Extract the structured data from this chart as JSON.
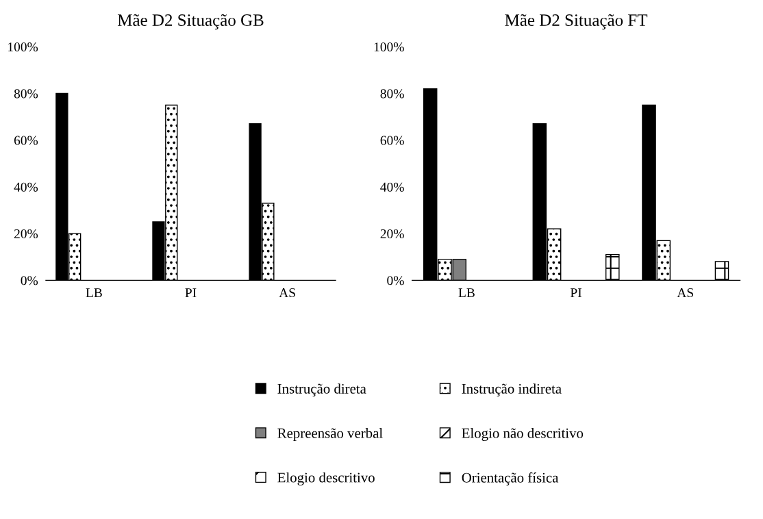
{
  "chart_data": [
    {
      "type": "bar",
      "title": "Mãe D2 Situação GB",
      "categories": [
        "LB",
        "PI",
        "AS"
      ],
      "ylim": [
        0,
        100
      ],
      "yticks": [
        {
          "value": 0,
          "label": "0%"
        },
        {
          "value": 20,
          "label": "20%"
        },
        {
          "value": 40,
          "label": "40%"
        },
        {
          "value": 60,
          "label": "60%"
        },
        {
          "value": 80,
          "label": "80%"
        },
        {
          "value": 100,
          "label": "100%"
        }
      ],
      "grid": false,
      "series": [
        {
          "color": "#000000",
          "values": [
            80,
            25,
            67
          ]
        },
        {
          "color": "#000000",
          "values": [
            20,
            75,
            33
          ]
        },
        {
          "color": "#808080",
          "values": [
            null,
            null,
            null
          ]
        },
        {
          "color": "#000000",
          "values": [
            null,
            null,
            null
          ]
        },
        {
          "color": "#000000",
          "values": [
            null,
            null,
            null
          ]
        },
        {
          "color": "#000000",
          "values": [
            null,
            null,
            null
          ]
        }
      ]
    },
    {
      "type": "bar",
      "title": "Mãe D2 Situação FT",
      "categories": [
        "LB",
        "PI",
        "AS"
      ],
      "ylim": [
        0,
        100
      ],
      "yticks": [
        {
          "value": 0,
          "label": "0%"
        },
        {
          "value": 20,
          "label": "20%"
        },
        {
          "value": 40,
          "label": "40%"
        },
        {
          "value": 60,
          "label": "60%"
        },
        {
          "value": 80,
          "label": "80%"
        },
        {
          "value": 100,
          "label": "100%"
        }
      ],
      "grid": false,
      "legend": "bottom",
      "series": [
        {
          "name": "Instrução direta",
          "color": "#000000",
          "values": [
            82,
            67,
            75
          ]
        },
        {
          "name": "Instrução indireta",
          "color": "#000000",
          "values": [
            9,
            22,
            17
          ]
        },
        {
          "name": "Repreensão verbal",
          "color": "#808080",
          "values": [
            9,
            null,
            null
          ]
        },
        {
          "name": "Elogio não descritivo",
          "color": "#000000",
          "values": [
            null,
            null,
            null
          ]
        },
        {
          "name": "Elogio descritivo",
          "color": "#000000",
          "values": [
            null,
            null,
            null
          ]
        },
        {
          "name": "Orientação física",
          "color": "#000000",
          "values": [
            null,
            11,
            8
          ]
        }
      ]
    }
  ]
}
